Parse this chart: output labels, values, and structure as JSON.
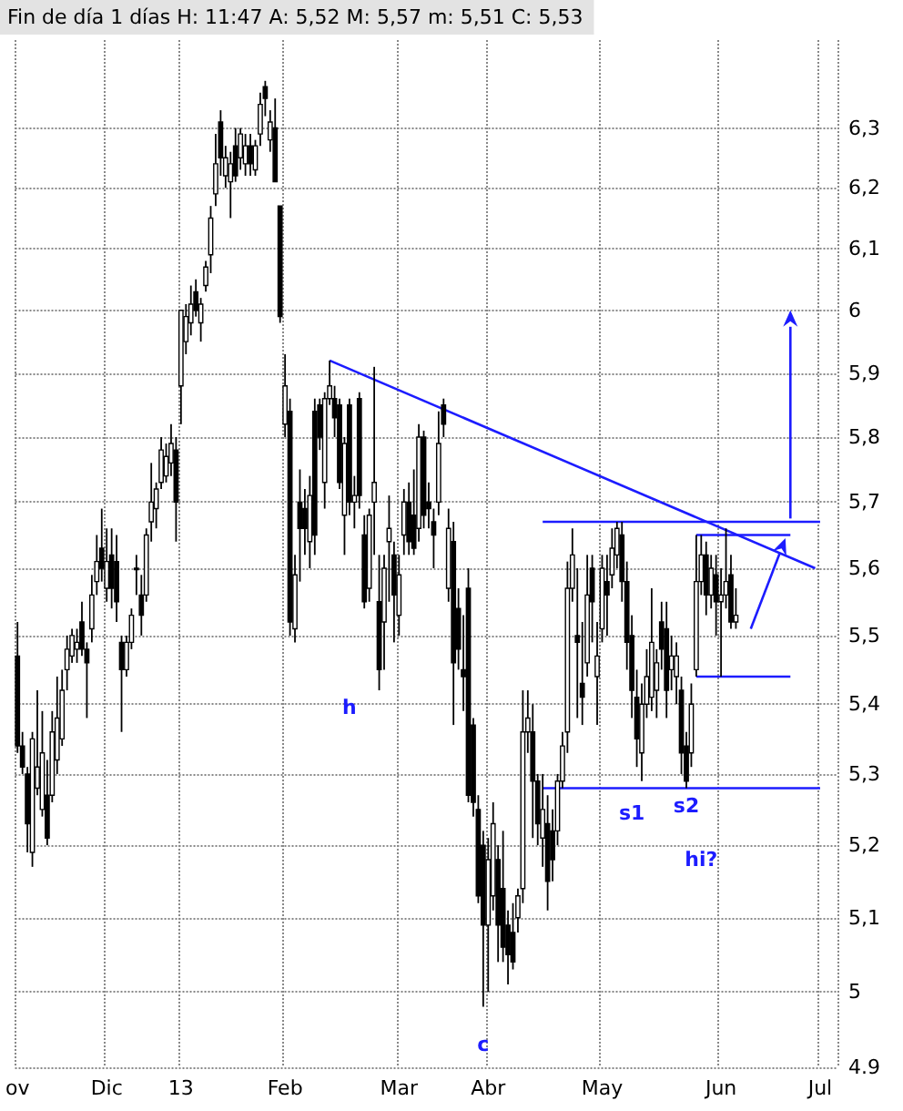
{
  "chart_data": {
    "type": "candlestick",
    "title": "Fin de día 1 días H: 11:47 A: 5,52 M: 5,57 m: 5,51 C: 5,53",
    "categories": [
      "ov",
      null,
      null,
      null,
      null,
      null,
      null,
      null,
      null,
      null,
      null,
      null,
      null,
      null,
      null,
      null,
      null,
      null,
      "Dic",
      null,
      null,
      null,
      null,
      null,
      null,
      null,
      null,
      null,
      null,
      null,
      null,
      null,
      null,
      "13",
      null,
      null,
      null,
      null,
      null,
      null,
      null,
      null,
      null,
      null,
      null,
      null,
      null,
      null,
      null,
      null,
      null,
      null,
      null,
      null,
      "Feb",
      null,
      null,
      null,
      null,
      null,
      null,
      null,
      null,
      null,
      null,
      null,
      null,
      null,
      null,
      null,
      null,
      null,
      null,
      null,
      null,
      null,
      null,
      "Mar",
      null,
      null,
      null,
      null,
      null,
      null,
      null,
      null,
      null,
      null,
      null,
      null,
      null,
      null,
      null,
      null,
      null,
      "Abr",
      null,
      null,
      null,
      null,
      null,
      null,
      null,
      null,
      null,
      null,
      null,
      null,
      null,
      null,
      null,
      null,
      null,
      null,
      null,
      null,
      null,
      null,
      "May",
      null,
      null,
      null,
      null,
      null,
      null,
      null,
      null,
      null,
      null,
      null,
      null,
      null,
      null,
      null,
      null,
      null,
      null,
      null,
      null,
      null,
      null,
      null,
      "Jun",
      null,
      null,
      null,
      null,
      null,
      null,
      null,
      null,
      null,
      null,
      null,
      null,
      null,
      null,
      null,
      null,
      null,
      null,
      null,
      "Jul",
      null,
      null,
      null
    ],
    "color": "#000000",
    "ohlc": [
      [
        5.47,
        5.52,
        5.33,
        5.34
      ],
      [
        5.34,
        5.36,
        5.3,
        5.31
      ],
      [
        5.3,
        5.31,
        5.19,
        5.23
      ],
      [
        5.19,
        5.36,
        5.17,
        5.35
      ],
      [
        5.28,
        5.42,
        5.27,
        5.31
      ],
      [
        5.25,
        5.39,
        5.24,
        5.33
      ],
      [
        5.27,
        5.32,
        5.2,
        5.21
      ],
      [
        5.27,
        5.39,
        5.26,
        5.36
      ],
      [
        5.32,
        5.44,
        5.3,
        5.38
      ],
      [
        5.35,
        5.45,
        5.34,
        5.42
      ],
      [
        5.45,
        5.5,
        5.42,
        5.48
      ],
      [
        5.47,
        5.51,
        5.46,
        5.5
      ],
      [
        5.48,
        5.51,
        5.46,
        5.49
      ],
      [
        5.52,
        5.55,
        5.47,
        5.48
      ],
      [
        5.48,
        5.49,
        5.38,
        5.46
      ],
      [
        5.51,
        5.59,
        5.49,
        5.56
      ],
      [
        5.58,
        5.65,
        5.56,
        5.61
      ],
      [
        5.63,
        5.69,
        5.58,
        5.6
      ],
      [
        5.57,
        5.66,
        5.55,
        5.61
      ],
      [
        5.62,
        5.66,
        5.54,
        5.57
      ],
      [
        5.61,
        5.65,
        5.52,
        5.55
      ],
      [
        5.49,
        5.5,
        5.36,
        5.45
      ],
      [
        5.45,
        5.5,
        5.44,
        5.49
      ],
      [
        5.49,
        5.54,
        5.48,
        5.53
      ],
      [
        5.6,
        5.62,
        5.56,
        5.6
      ],
      [
        5.56,
        5.59,
        5.5,
        5.53
      ],
      [
        5.56,
        5.66,
        5.55,
        5.65
      ],
      [
        5.67,
        5.76,
        5.64,
        5.7
      ],
      [
        5.69,
        5.73,
        5.66,
        5.72
      ],
      [
        5.73,
        5.8,
        5.72,
        5.78
      ],
      [
        5.74,
        5.79,
        5.73,
        5.77
      ],
      [
        5.76,
        5.82,
        5.74,
        5.79
      ],
      [
        5.78,
        5.8,
        5.64,
        5.7
      ],
      [
        5.88,
        6.0,
        5.82,
        6.0
      ],
      [
        5.95,
        6.01,
        5.93,
        5.99
      ],
      [
        5.98,
        6.04,
        5.96,
        6.01
      ],
      [
        6.03,
        6.05,
        5.99,
        6.0
      ],
      [
        5.98,
        6.02,
        5.95,
        6.01
      ],
      [
        6.04,
        6.08,
        6.03,
        6.07
      ],
      [
        6.09,
        6.17,
        6.06,
        6.15
      ],
      [
        6.19,
        6.29,
        6.17,
        6.24
      ],
      [
        6.31,
        6.33,
        6.22,
        6.25
      ],
      [
        6.22,
        6.27,
        6.2,
        6.25
      ],
      [
        6.21,
        6.26,
        6.15,
        6.24
      ],
      [
        6.27,
        6.3,
        6.21,
        6.22
      ],
      [
        6.25,
        6.3,
        6.23,
        6.29
      ],
      [
        6.24,
        6.29,
        6.22,
        6.27
      ],
      [
        6.27,
        6.29,
        6.22,
        6.24
      ],
      [
        6.23,
        6.28,
        6.22,
        6.27
      ],
      [
        6.29,
        6.36,
        6.27,
        6.34
      ],
      [
        6.37,
        6.38,
        6.32,
        6.35
      ],
      [
        6.28,
        6.33,
        6.26,
        6.31
      ],
      [
        6.3,
        6.35,
        6.21,
        6.21
      ],
      [
        6.17,
        6.17,
        5.98,
        5.99
      ],
      [
        5.82,
        5.93,
        5.8,
        5.88
      ],
      [
        5.84,
        5.86,
        5.5,
        5.52
      ],
      [
        5.51,
        5.62,
        5.49,
        5.59
      ],
      [
        5.7,
        5.75,
        5.58,
        5.66
      ],
      [
        5.69,
        5.72,
        5.62,
        5.66
      ],
      [
        5.64,
        5.74,
        5.6,
        5.71
      ],
      [
        5.84,
        5.86,
        5.62,
        5.65
      ],
      [
        5.85,
        5.86,
        5.78,
        5.8
      ],
      [
        5.73,
        5.87,
        5.69,
        5.86
      ],
      [
        5.86,
        5.92,
        5.85,
        5.88
      ],
      [
        5.86,
        5.88,
        5.8,
        5.83
      ],
      [
        5.85,
        5.86,
        5.72,
        5.73
      ],
      [
        5.68,
        5.8,
        5.62,
        5.79
      ],
      [
        5.85,
        5.86,
        5.68,
        5.7
      ],
      [
        5.7,
        5.74,
        5.66,
        5.71
      ],
      [
        5.86,
        5.87,
        5.69,
        5.71
      ],
      [
        5.65,
        5.68,
        5.54,
        5.55
      ],
      [
        5.57,
        5.69,
        5.55,
        5.68
      ],
      [
        5.7,
        5.91,
        5.62,
        5.73
      ],
      [
        5.55,
        5.62,
        5.42,
        5.45
      ],
      [
        5.52,
        5.62,
        5.45,
        5.6
      ],
      [
        5.64,
        5.71,
        5.55,
        5.66
      ],
      [
        5.62,
        5.64,
        5.49,
        5.56
      ],
      [
        5.53,
        5.62,
        5.5,
        5.59
      ],
      [
        5.65,
        5.72,
        5.62,
        5.7
      ],
      [
        5.7,
        5.73,
        5.62,
        5.64
      ],
      [
        5.68,
        5.75,
        5.62,
        5.63
      ],
      [
        5.66,
        5.82,
        5.64,
        5.8
      ],
      [
        5.8,
        5.81,
        5.66,
        5.68
      ],
      [
        5.7,
        5.73,
        5.66,
        5.69
      ],
      [
        5.67,
        5.69,
        5.6,
        5.65
      ],
      [
        5.7,
        5.84,
        5.68,
        5.79
      ],
      [
        5.85,
        5.86,
        5.8,
        5.82
      ],
      [
        5.57,
        5.69,
        5.55,
        5.66
      ],
      [
        5.64,
        5.67,
        5.37,
        5.46
      ],
      [
        5.54,
        5.57,
        5.45,
        5.48
      ],
      [
        5.45,
        5.53,
        5.39,
        5.44
      ],
      [
        5.57,
        5.6,
        5.26,
        5.27
      ],
      [
        5.37,
        5.38,
        5.24,
        5.26
      ],
      [
        5.25,
        5.27,
        5.12,
        5.13
      ],
      [
        5.2,
        5.22,
        4.98,
        5.09
      ],
      [
        5.09,
        5.21,
        5.0,
        5.18
      ],
      [
        5.13,
        5.26,
        5.11,
        5.23
      ],
      [
        5.18,
        5.2,
        5.04,
        5.09
      ],
      [
        5.14,
        5.22,
        5.04,
        5.06
      ],
      [
        5.09,
        5.11,
        5.01,
        5.05
      ],
      [
        5.08,
        5.12,
        5.03,
        5.04
      ],
      [
        5.1,
        5.14,
        5.08,
        5.13
      ],
      [
        5.14,
        5.42,
        5.12,
        5.36
      ],
      [
        5.36,
        5.42,
        5.33,
        5.38
      ],
      [
        5.36,
        5.4,
        5.21,
        5.29
      ],
      [
        5.29,
        5.3,
        5.2,
        5.23
      ],
      [
        5.21,
        5.3,
        5.17,
        5.25
      ],
      [
        5.23,
        5.27,
        5.11,
        5.15
      ],
      [
        5.22,
        5.25,
        5.15,
        5.18
      ],
      [
        5.22,
        5.3,
        5.2,
        5.29
      ],
      [
        5.29,
        5.36,
        5.28,
        5.34
      ],
      [
        5.36,
        5.61,
        5.33,
        5.57
      ],
      [
        5.57,
        5.66,
        5.55,
        5.62
      ],
      [
        5.5,
        5.6,
        5.38,
        5.49
      ],
      [
        5.43,
        5.52,
        5.37,
        5.41
      ],
      [
        5.46,
        5.62,
        5.44,
        5.56
      ],
      [
        5.6,
        5.62,
        5.49,
        5.55
      ],
      [
        5.44,
        5.52,
        5.37,
        5.47
      ],
      [
        5.51,
        5.62,
        5.49,
        5.6
      ],
      [
        5.58,
        5.62,
        5.5,
        5.56
      ],
      [
        5.59,
        5.66,
        5.57,
        5.63
      ],
      [
        5.62,
        5.67,
        5.6,
        5.66
      ],
      [
        5.65,
        5.67,
        5.55,
        5.58
      ],
      [
        5.58,
        5.61,
        5.45,
        5.49
      ],
      [
        5.5,
        5.53,
        5.38,
        5.42
      ],
      [
        5.41,
        5.45,
        5.31,
        5.35
      ],
      [
        5.33,
        5.43,
        5.29,
        5.4
      ],
      [
        5.4,
        5.48,
        5.38,
        5.44
      ],
      [
        5.41,
        5.57,
        5.39,
        5.49
      ],
      [
        5.42,
        5.48,
        5.38,
        5.46
      ],
      [
        5.52,
        5.55,
        5.45,
        5.48
      ],
      [
        5.51,
        5.55,
        5.38,
        5.42
      ],
      [
        5.45,
        5.5,
        5.42,
        5.47
      ],
      [
        5.44,
        5.49,
        5.4,
        5.47
      ],
      [
        5.42,
        5.44,
        5.3,
        5.33
      ],
      [
        5.34,
        5.36,
        5.28,
        5.29
      ],
      [
        5.33,
        5.43,
        5.31,
        5.4
      ],
      [
        5.45,
        5.65,
        5.44,
        5.58
      ],
      [
        5.58,
        5.65,
        5.56,
        5.62
      ],
      [
        5.62,
        5.64,
        5.53,
        5.56
      ],
      [
        5.56,
        5.62,
        5.54,
        5.6
      ],
      [
        5.59,
        5.62,
        5.5,
        5.55
      ],
      [
        5.55,
        5.6,
        5.44,
        5.56
      ],
      [
        5.56,
        5.66,
        5.54,
        5.58
      ],
      [
        5.59,
        5.62,
        5.51,
        5.52
      ],
      [
        5.52,
        5.57,
        5.51,
        5.53
      ],
      null,
      null,
      null,
      null,
      null,
      null,
      null,
      null,
      null,
      null,
      null,
      null,
      null,
      null,
      null,
      null,
      null,
      null,
      null,
      null
    ],
    "series": [
      {
        "type": "line",
        "color": "#1c1cff",
        "values": [
          null,
          null,
          null,
          null,
          null,
          null,
          null,
          null,
          null,
          null,
          null,
          null,
          null,
          null,
          null,
          null,
          null,
          null,
          null,
          null,
          null,
          null,
          null,
          null,
          null,
          null,
          null,
          null,
          null,
          null,
          null,
          null,
          null,
          null,
          null,
          null,
          null,
          null,
          null,
          null,
          null,
          null,
          null,
          null,
          null,
          null,
          null,
          null,
          null,
          null,
          null,
          null,
          null,
          null,
          null,
          null,
          null,
          null,
          null,
          null,
          null,
          null,
          null,
          5.92,
          null,
          null,
          null,
          null,
          null,
          null,
          null,
          null,
          null,
          null,
          null,
          null,
          null,
          null,
          null,
          null,
          null,
          null,
          null,
          null,
          null,
          null,
          null,
          null,
          null,
          null,
          null,
          null,
          null,
          null,
          null,
          null,
          null,
          null,
          null,
          null,
          null,
          null,
          null,
          null,
          null,
          null,
          null,
          null,
          null,
          null,
          null,
          null,
          null,
          null,
          null,
          null,
          null,
          null,
          null,
          null,
          null,
          null,
          null,
          null,
          null,
          null,
          null,
          null,
          null,
          null,
          null,
          null,
          null,
          null,
          null,
          null,
          null,
          null,
          null,
          null,
          null,
          null,
          null,
          null,
          null,
          null,
          null,
          null,
          null,
          null,
          null,
          null,
          null,
          null,
          null,
          null,
          null,
          null,
          null,
          null,
          null,
          5.6,
          null,
          null,
          null,
          null
        ]
      },
      {
        "type": "line",
        "color": "#1c1cff",
        "values": [
          null,
          null,
          null,
          null,
          null,
          null,
          null,
          null,
          null,
          null,
          null,
          null,
          null,
          null,
          null,
          null,
          null,
          null,
          null,
          null,
          null,
          null,
          null,
          null,
          null,
          null,
          null,
          null,
          null,
          null,
          null,
          null,
          null,
          null,
          null,
          null,
          null,
          null,
          null,
          null,
          null,
          null,
          null,
          null,
          null,
          null,
          null,
          null,
          null,
          null,
          null,
          null,
          null,
          null,
          null,
          null,
          null,
          null,
          null,
          null,
          null,
          null,
          null,
          null,
          null,
          null,
          null,
          null,
          null,
          null,
          null,
          null,
          null,
          null,
          null,
          null,
          null,
          null,
          null,
          null,
          null,
          null,
          null,
          null,
          null,
          null,
          null,
          null,
          null,
          null,
          null,
          null,
          null,
          null,
          null,
          null,
          null,
          null,
          null,
          null,
          null,
          null,
          null,
          null,
          null,
          null,
          5.67,
          null,
          null,
          null,
          null,
          null,
          null,
          null,
          null,
          null,
          null,
          null,
          null,
          null,
          null,
          null,
          null,
          null,
          null,
          null,
          null,
          null,
          null,
          null,
          null,
          null,
          null,
          null,
          null,
          null,
          null,
          null,
          null,
          null,
          null,
          null,
          null,
          null,
          null,
          null,
          null,
          null,
          null,
          null,
          null,
          null,
          null,
          null,
          null,
          null,
          null,
          null,
          null,
          null,
          null,
          null,
          5.67,
          null,
          null,
          null
        ]
      },
      {
        "type": "line",
        "color": "#1c1cff",
        "values": [
          null,
          null,
          null,
          null,
          null,
          null,
          null,
          null,
          null,
          null,
          null,
          null,
          null,
          null,
          null,
          null,
          null,
          null,
          null,
          null,
          null,
          null,
          null,
          null,
          null,
          null,
          null,
          null,
          null,
          null,
          null,
          null,
          null,
          null,
          null,
          null,
          null,
          null,
          null,
          null,
          null,
          null,
          null,
          null,
          null,
          null,
          null,
          null,
          null,
          null,
          null,
          null,
          null,
          null,
          null,
          null,
          null,
          null,
          null,
          null,
          null,
          null,
          null,
          null,
          null,
          null,
          null,
          null,
          null,
          null,
          null,
          null,
          null,
          null,
          null,
          null,
          null,
          null,
          null,
          null,
          null,
          null,
          null,
          null,
          null,
          null,
          null,
          null,
          null,
          null,
          null,
          null,
          null,
          null,
          null,
          null,
          null,
          null,
          null,
          null,
          null,
          null,
          null,
          null,
          null,
          null,
          5.28,
          null,
          null,
          null,
          null,
          null,
          null,
          null,
          null,
          null,
          null,
          null,
          null,
          null,
          null,
          null,
          null,
          null,
          null,
          null,
          null,
          null,
          null,
          null,
          null,
          null,
          null,
          null,
          null,
          null,
          null,
          null,
          null,
          null,
          null,
          null,
          null,
          null,
          null,
          null,
          null,
          null,
          null,
          null,
          null,
          null,
          null,
          null,
          null,
          null,
          null,
          null,
          null,
          null,
          null,
          null,
          5.28,
          null,
          null,
          null
        ]
      },
      {
        "type": "line",
        "color": "#1c1cff",
        "values": [
          null,
          null,
          null,
          null,
          null,
          null,
          null,
          null,
          null,
          null,
          null,
          null,
          null,
          null,
          null,
          null,
          null,
          null,
          null,
          null,
          null,
          null,
          null,
          null,
          null,
          null,
          null,
          null,
          null,
          null,
          null,
          null,
          null,
          null,
          null,
          null,
          null,
          null,
          null,
          null,
          null,
          null,
          null,
          null,
          null,
          null,
          null,
          null,
          null,
          null,
          null,
          null,
          null,
          null,
          null,
          null,
          null,
          null,
          null,
          null,
          null,
          null,
          null,
          null,
          null,
          null,
          null,
          null,
          null,
          null,
          null,
          null,
          null,
          null,
          null,
          null,
          null,
          null,
          null,
          null,
          null,
          null,
          null,
          null,
          null,
          null,
          null,
          null,
          null,
          null,
          null,
          null,
          null,
          null,
          null,
          null,
          null,
          null,
          null,
          null,
          null,
          null,
          null,
          null,
          null,
          null,
          null,
          null,
          null,
          null,
          null,
          null,
          null,
          null,
          null,
          null,
          null,
          null,
          null,
          null,
          null,
          null,
          null,
          null,
          null,
          null,
          null,
          null,
          null,
          null,
          null,
          null,
          null,
          null,
          null,
          null,
          null,
          5.65,
          null,
          null,
          null,
          null,
          null,
          null,
          null,
          null,
          null,
          null,
          null,
          null,
          null,
          null,
          null,
          null,
          null,
          null,
          5.65,
          null,
          null,
          null,
          null,
          null,
          null,
          null,
          null,
          null
        ]
      },
      {
        "type": "line",
        "color": "#1c1cff",
        "values": [
          null,
          null,
          null,
          null,
          null,
          null,
          null,
          null,
          null,
          null,
          null,
          null,
          null,
          null,
          null,
          null,
          null,
          null,
          null,
          null,
          null,
          null,
          null,
          null,
          null,
          null,
          null,
          null,
          null,
          null,
          null,
          null,
          null,
          null,
          null,
          null,
          null,
          null,
          null,
          null,
          null,
          null,
          null,
          null,
          null,
          null,
          null,
          null,
          null,
          null,
          null,
          null,
          null,
          null,
          null,
          null,
          null,
          null,
          null,
          null,
          null,
          null,
          null,
          null,
          null,
          null,
          null,
          null,
          null,
          null,
          null,
          null,
          null,
          null,
          null,
          null,
          null,
          null,
          null,
          null,
          null,
          null,
          null,
          null,
          null,
          null,
          null,
          null,
          null,
          null,
          null,
          null,
          null,
          null,
          null,
          null,
          null,
          null,
          null,
          null,
          null,
          null,
          null,
          null,
          null,
          null,
          null,
          null,
          null,
          null,
          null,
          null,
          null,
          null,
          null,
          null,
          null,
          null,
          null,
          null,
          null,
          null,
          null,
          null,
          null,
          null,
          null,
          null,
          null,
          null,
          null,
          null,
          null,
          null,
          null,
          null,
          null,
          5.44,
          null,
          null,
          null,
          null,
          null,
          null,
          null,
          null,
          null,
          null,
          null,
          null,
          null,
          null,
          null,
          null,
          null,
          null,
          5.44,
          null,
          null,
          null,
          null,
          null,
          null,
          null,
          null,
          null
        ]
      }
    ],
    "annotations": [
      "h",
      "c",
      "s1",
      "s2",
      "hi?"
    ],
    "log": true,
    "grid": true,
    "ylim": [
      4.9,
      6.45
    ],
    "yticks": [
      {
        "value": 4.9,
        "label": "4.9"
      },
      5,
      {
        "value": 5.1,
        "label": "5,1"
      },
      {
        "value": 5.2,
        "label": "5,2"
      },
      {
        "value": 5.3,
        "label": "5,3"
      },
      {
        "value": 5.4,
        "label": "5,4"
      },
      {
        "value": 5.5,
        "label": "5,5"
      },
      {
        "value": 5.6,
        "label": "5,6"
      },
      {
        "value": 5.7,
        "label": "5,7"
      },
      {
        "value": 5.8,
        "label": "5,8"
      },
      {
        "value": 5.9,
        "label": "5,9"
      },
      6,
      {
        "value": 6.1,
        "label": "6,1"
      },
      {
        "value": 6.2,
        "label": "6,2"
      },
      {
        "value": 6.3,
        "label": "6,3"
      }
    ]
  }
}
